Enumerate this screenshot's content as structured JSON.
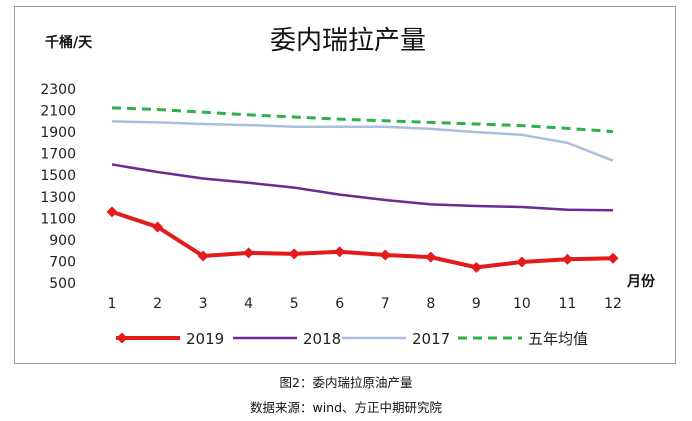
{
  "chart_data": {
    "type": "line",
    "title": "委内瑞拉产量",
    "ylabel": "千桶/天",
    "xlabel": "月份",
    "ylim": [
      500,
      2300
    ],
    "yticks": [
      500,
      700,
      900,
      1100,
      1300,
      1500,
      1700,
      1900,
      2100,
      2300
    ],
    "categories": [
      "1",
      "2",
      "3",
      "4",
      "5",
      "6",
      "7",
      "8",
      "9",
      "10",
      "11",
      "12"
    ],
    "series": [
      {
        "name": "2019",
        "color": "#e31b1b",
        "style": "marker",
        "values": [
          1160,
          1020,
          750,
          780,
          770,
          790,
          760,
          740,
          645,
          695,
          720,
          730
        ]
      },
      {
        "name": "2018",
        "color": "#6a2c91",
        "style": "solid",
        "values": [
          1600,
          1530,
          1470,
          1430,
          1385,
          1320,
          1270,
          1230,
          1215,
          1205,
          1180,
          1175
        ]
      },
      {
        "name": "2017",
        "color": "#a9c0dc",
        "style": "solid",
        "values": [
          2000,
          1990,
          1975,
          1965,
          1950,
          1950,
          1950,
          1930,
          1900,
          1875,
          1800,
          1635
        ]
      },
      {
        "name": "五年均值",
        "color": "#2db14a",
        "style": "dashed",
        "values": [
          2125,
          2110,
          2085,
          2060,
          2040,
          2020,
          2005,
          1990,
          1975,
          1960,
          1935,
          1905
        ]
      }
    ]
  },
  "caption": {
    "figure": "图2：委内瑞拉原油产量",
    "source": "数据来源：wind、方正中期研究院"
  }
}
